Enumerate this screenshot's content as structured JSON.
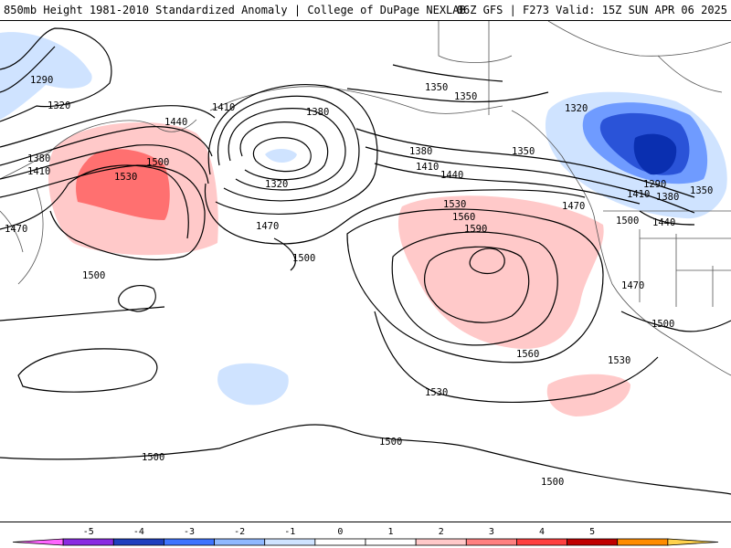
{
  "header": {
    "left_title": "850mb Height 1981-2010 Standardized Anomaly | College of DuPage NEXLAB",
    "right_title": "06Z GFS | F273 Valid: 15Z SUN APR 06 2025"
  },
  "colorbar": {
    "ticks": [
      "-5",
      "-4",
      "-3",
      "-2",
      "-1",
      "0",
      "1",
      "2",
      "3",
      "4",
      "5"
    ],
    "colors": [
      "#ff66ff",
      "#8a2be2",
      "#1f3fbf",
      "#3f74ff",
      "#8fb8ff",
      "#cfe3ff",
      "#ffffff",
      "#ffffff",
      "#ffc9c9",
      "#ff8080",
      "#ff4040",
      "#c00000",
      "#ff8c00",
      "#ffd24d"
    ]
  },
  "contour_labels": [
    "1290",
    "1320",
    "1380",
    "1410",
    "1440",
    "1530",
    "1500",
    "1470",
    "1500",
    "1410",
    "1380",
    "1320",
    "1470",
    "1500",
    "1350",
    "1350",
    "1380",
    "1410",
    "1440",
    "1530",
    "1560",
    "1590",
    "1560",
    "1530",
    "1530",
    "1500",
    "1500",
    "1350",
    "1320",
    "1290",
    "1410",
    "1380",
    "1350",
    "1500",
    "1440",
    "1470",
    "1470",
    "1500",
    "1500"
  ],
  "colors": {
    "positive_light": "#ffc9c9",
    "positive_mid": "#ff7070",
    "negative_light": "#cfe3ff",
    "negative_mid": "#6f9bff",
    "negative_dark": "#2a53d8",
    "negative_deep": "#0a2fb0"
  }
}
